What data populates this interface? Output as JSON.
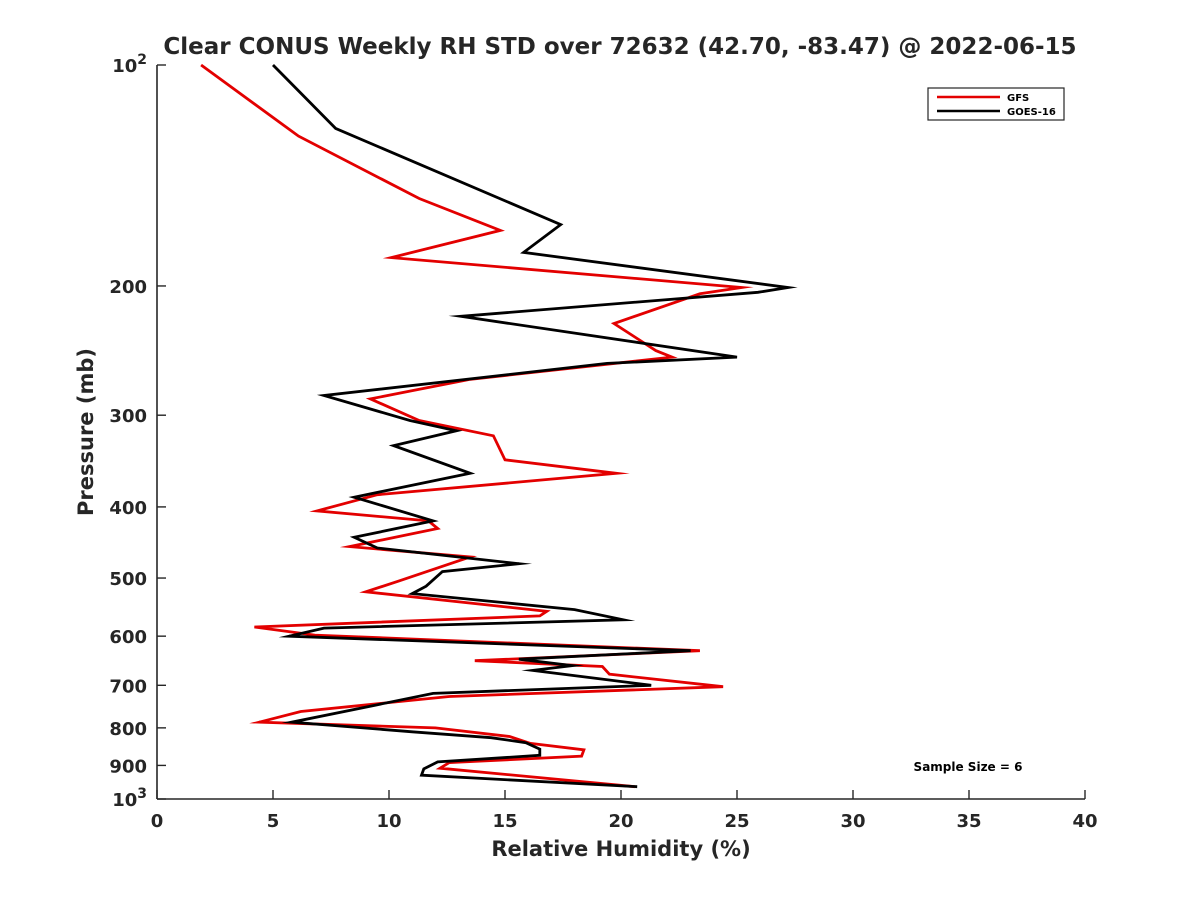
{
  "chart_data": {
    "type": "line",
    "title": "Clear CONUS Weekly RH STD over 72632 (42.70, -83.47) @ 2022-06-15",
    "xlabel": "Relative Humidity (%)",
    "ylabel": "Pressure (mb)",
    "xlim": [
      0,
      40
    ],
    "ylim": [
      100,
      1000
    ],
    "y_scale": "log",
    "y_reversed": true,
    "x_ticks": [
      0,
      5,
      10,
      15,
      20,
      25,
      30,
      35,
      40
    ],
    "y_ticks": [
      {
        "value": 100,
        "label": "10",
        "sup": "2"
      },
      {
        "value": 200,
        "label": "200",
        "sup": ""
      },
      {
        "value": 300,
        "label": "300",
        "sup": ""
      },
      {
        "value": 400,
        "label": "400",
        "sup": ""
      },
      {
        "value": 500,
        "label": "500",
        "sup": ""
      },
      {
        "value": 600,
        "label": "600",
        "sup": ""
      },
      {
        "value": 700,
        "label": "700",
        "sup": ""
      },
      {
        "value": 800,
        "label": "800",
        "sup": ""
      },
      {
        "value": 900,
        "label": "900",
        "sup": ""
      },
      {
        "value": 1000,
        "label": "10",
        "sup": "3"
      }
    ],
    "grid": false,
    "legend_position": "top-right",
    "series": [
      {
        "name": "GFS",
        "color": "#e30000",
        "points": [
          [
            1.9,
            100
          ],
          [
            6.1,
            125
          ],
          [
            11.3,
            152
          ],
          [
            14.8,
            168
          ],
          [
            10.1,
            183
          ],
          [
            25.2,
            201
          ],
          [
            23.4,
            205
          ],
          [
            19.7,
            225
          ],
          [
            21.5,
            245
          ],
          [
            22.2,
            250
          ],
          [
            13.5,
            268
          ],
          [
            11.2,
            277
          ],
          [
            9.2,
            285
          ],
          [
            11.3,
            305
          ],
          [
            14.5,
            320
          ],
          [
            15.0,
            345
          ],
          [
            19.8,
            360
          ],
          [
            9.5,
            385
          ],
          [
            6.9,
            405
          ],
          [
            11.7,
            418
          ],
          [
            12.1,
            428
          ],
          [
            8.3,
            453
          ],
          [
            13.5,
            468
          ],
          [
            10.4,
            505
          ],
          [
            9.0,
            522
          ],
          [
            16.8,
            555
          ],
          [
            16.5,
            563
          ],
          [
            4.2,
            583
          ],
          [
            6.8,
            598
          ],
          [
            23.4,
            628
          ],
          [
            13.7,
            648
          ],
          [
            19.2,
            660
          ],
          [
            19.5,
            676
          ],
          [
            24.4,
            703
          ],
          [
            12.6,
            725
          ],
          [
            6.2,
            760
          ],
          [
            4.4,
            786
          ],
          [
            12.0,
            800
          ],
          [
            15.2,
            822
          ],
          [
            16.1,
            840
          ],
          [
            18.4,
            857
          ],
          [
            18.3,
            874
          ],
          [
            12.6,
            892
          ],
          [
            12.2,
            908
          ],
          [
            20.6,
            962
          ]
        ]
      },
      {
        "name": "GOES-16",
        "color": "#000000",
        "points": [
          [
            5.0,
            100
          ],
          [
            7.7,
            122
          ],
          [
            17.4,
            165
          ],
          [
            15.8,
            180
          ],
          [
            27.2,
            201
          ],
          [
            25.9,
            204
          ],
          [
            13.1,
            220
          ],
          [
            25.0,
            250
          ],
          [
            19.4,
            255
          ],
          [
            7.2,
            282
          ],
          [
            10.9,
            305
          ],
          [
            12.9,
            315
          ],
          [
            10.2,
            330
          ],
          [
            13.5,
            360
          ],
          [
            8.5,
            388
          ],
          [
            11.9,
            418
          ],
          [
            8.5,
            440
          ],
          [
            9.5,
            455
          ],
          [
            15.6,
            478
          ],
          [
            12.3,
            490
          ],
          [
            11.6,
            513
          ],
          [
            11.0,
            525
          ],
          [
            18.0,
            552
          ],
          [
            20.1,
            570
          ],
          [
            7.2,
            585
          ],
          [
            5.7,
            600
          ],
          [
            23.0,
            628
          ],
          [
            15.6,
            645
          ],
          [
            17.9,
            658
          ],
          [
            16.2,
            668
          ],
          [
            21.3,
            700
          ],
          [
            11.9,
            718
          ],
          [
            9.4,
            745
          ],
          [
            5.8,
            786
          ],
          [
            11.0,
            810
          ],
          [
            14.4,
            825
          ],
          [
            15.9,
            838
          ],
          [
            16.5,
            855
          ],
          [
            16.5,
            872
          ],
          [
            12.1,
            890
          ],
          [
            11.5,
            910
          ],
          [
            11.4,
            928
          ],
          [
            20.7,
            962
          ]
        ]
      }
    ],
    "annotations": [
      {
        "text": "Sample Size = 6"
      }
    ]
  }
}
